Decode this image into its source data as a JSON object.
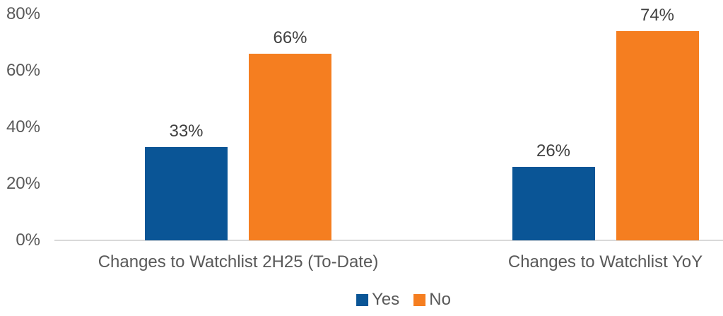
{
  "chart_data": {
    "type": "bar",
    "title": "",
    "categories": [
      "Changes to Watchlist 2H25 (To-Date)",
      "Changes to Watchlist YoY"
    ],
    "series": [
      {
        "name": "Yes",
        "color": "#0a5596",
        "values": [
          33,
          26
        ]
      },
      {
        "name": "No",
        "color": "#f57e20",
        "values": [
          66,
          74
        ]
      }
    ],
    "value_suffix": "%",
    "ylim": [
      0,
      80
    ],
    "y_tick_values": [
      0,
      20,
      40,
      60,
      80
    ],
    "y_tick_labels": [
      "0%",
      "20%",
      "40%",
      "60%",
      "80%"
    ],
    "data_labels": [
      "33%",
      "66%",
      "26%",
      "74%"
    ],
    "grid": false,
    "legend_position": "bottom"
  },
  "legend": {
    "items": [
      {
        "label": "Yes",
        "color": "#0a5596"
      },
      {
        "label": "No",
        "color": "#f57e20"
      }
    ]
  },
  "colors": {
    "background": "#ffffff",
    "axis_line": "#d9d9d9",
    "tick_text": "#595959",
    "category_text": "#595959",
    "data_label_text": "#404040"
  }
}
